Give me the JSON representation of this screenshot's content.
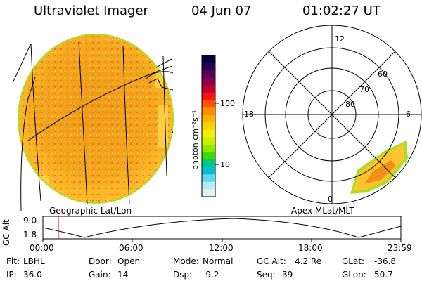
{
  "header": {
    "instrument": "Ultraviolet Imager",
    "date": "04 Jun 07",
    "time": "01:02:27 UT"
  },
  "left_panel": {
    "projection_label": "Geographic Lat/Lon"
  },
  "colorbar": {
    "unit_label": "photon cm⁻²s⁻¹",
    "ticks": [
      "100",
      "10"
    ],
    "colors": [
      "#000040",
      "#2a0050",
      "#55005a",
      "#8a0048",
      "#c00030",
      "#ff1010",
      "#ff5000",
      "#ff8c00",
      "#ffb000",
      "#ffd000",
      "#f0f000",
      "#c8f000",
      "#90e800",
      "#40d800",
      "#00c880",
      "#00c0d0",
      "#60d8f0",
      "#b8ecf4",
      "#e0f4f6"
    ]
  },
  "polar_plot": {
    "mlt_labels": [
      "12",
      "18",
      "6",
      "0"
    ],
    "lat_labels": [
      "60",
      "70",
      "80"
    ],
    "projection_label": "Apex MLat/MLT"
  },
  "altitude_strip": {
    "axis_label": "GC Alt",
    "y_ticks": [
      "9.0",
      "1.8"
    ],
    "x_ticks": [
      "00:00",
      "06:00",
      "12:00",
      "18:00",
      "23:59"
    ],
    "cursor_time": "01:02"
  },
  "status": {
    "filter_label": "Flt:",
    "filter": "LBHL",
    "door_label": "Door:",
    "door": "Open",
    "mode_label": "Mode:",
    "mode": "Normal",
    "gcalt_label": "GC Alt:",
    "gcalt": "4.2 Re",
    "glat_label": "GLat:",
    "glat": "-36.8",
    "ip_label": "IP:",
    "ip": "36.0",
    "gain_label": "Gain:",
    "gain": "14",
    "dsp_label": "Dsp:",
    "dsp": "-9.2",
    "seq_label": "Seq:",
    "seq": "39",
    "glon_label": "GLon:",
    "glon": "50.7"
  },
  "colors": {
    "disk_main": "#f2a31a",
    "disk_dim": "#ffc230",
    "disk_bright": "#e8801a",
    "rim": "#a6e020",
    "cursor": "#dd0000"
  }
}
